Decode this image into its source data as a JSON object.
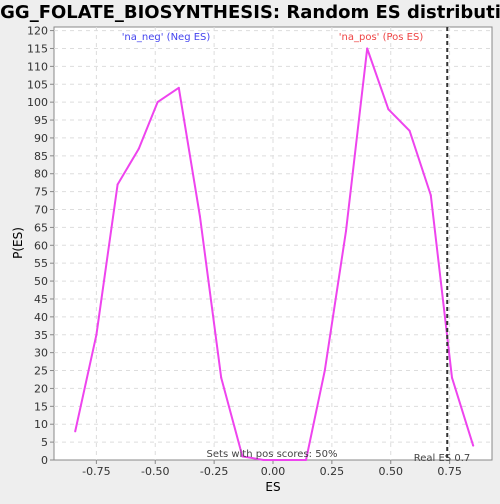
{
  "chart_data": {
    "type": "line",
    "title": "KEGG_FOLATE_BIOSYNTHESIS: Random ES distribution",
    "xlabel": "ES",
    "ylabel": "P(ES)",
    "xlim": [
      -0.93,
      0.93
    ],
    "ylim": [
      0,
      121
    ],
    "x_ticks": [
      -0.75,
      -0.5,
      -0.25,
      0.0,
      0.25,
      0.5,
      0.75
    ],
    "x_tick_labels": [
      "-0.75",
      "-0.50",
      "-0.25",
      "0.00",
      "0.25",
      "0.50",
      "0.75"
    ],
    "y_ticks": [
      0,
      5,
      10,
      15,
      20,
      25,
      30,
      35,
      40,
      45,
      50,
      55,
      60,
      65,
      70,
      75,
      80,
      85,
      90,
      95,
      100,
      105,
      110,
      115,
      120
    ],
    "grid": true,
    "series": [
      {
        "color": "#ee44ee",
        "x": [
          -0.84,
          -0.75,
          -0.66,
          -0.57,
          -0.49,
          -0.4,
          -0.31,
          -0.22,
          -0.13,
          -0.04,
          0.05,
          0.14,
          0.22,
          0.31,
          0.4,
          0.49,
          0.58,
          0.67,
          0.76,
          0.85
        ],
        "y": [
          8,
          35,
          77,
          87,
          100,
          104,
          68,
          23,
          1,
          0,
          0,
          0,
          25,
          64,
          115,
          98,
          92,
          74,
          23,
          4
        ]
      }
    ],
    "annotations": {
      "neg_label": "'na_neg' (Neg ES)",
      "pos_label": "'na_pos' (Pos ES)",
      "neg_color": "#4444ee",
      "pos_color": "#ee4444",
      "sets_text": "Sets with pos scores: 50%",
      "real_es_text": "Real ES 0.7",
      "real_es_value": 0.74
    },
    "colors": {
      "plot_bg": "#ffffff",
      "page_bg": "#eeeeee",
      "grid": "#dddddd",
      "axis": "#888888"
    }
  }
}
